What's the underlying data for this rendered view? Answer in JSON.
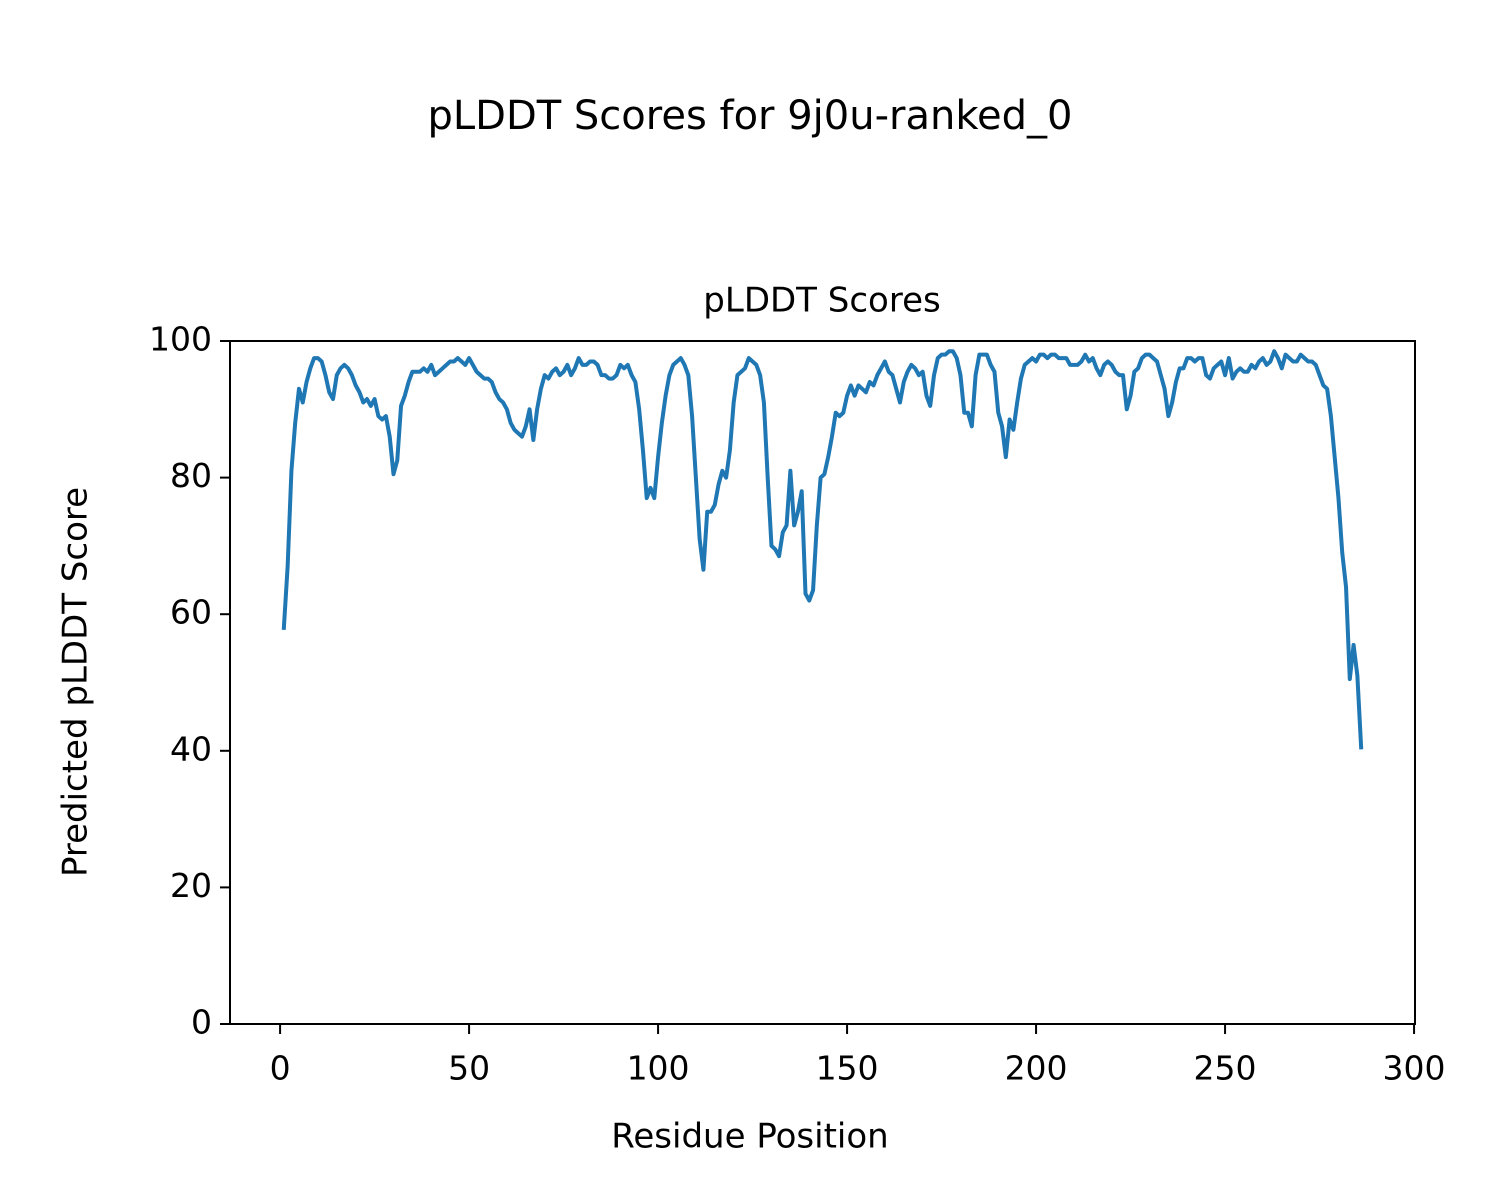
{
  "chart_data": {
    "type": "line",
    "title": "pLDDT Scores for 9j0u-ranked_0",
    "subtitle": "pLDDT Scores",
    "x_label": "Residue Position",
    "y_label": "Predicted pLDDT Score",
    "color": "#1f77b4",
    "xlim": [
      -13.25,
      300.25
    ],
    "ylim": [
      0,
      100
    ],
    "xticks": [
      0,
      50,
      100,
      150,
      200,
      250,
      300
    ],
    "yticks": [
      0,
      20,
      40,
      60,
      80,
      100
    ],
    "grid": false,
    "x": [
      1,
      2,
      3,
      4,
      5,
      6,
      7,
      8,
      9,
      10,
      11,
      12,
      13,
      14,
      15,
      16,
      17,
      18,
      19,
      20,
      21,
      22,
      23,
      24,
      25,
      26,
      27,
      28,
      29,
      30,
      31,
      32,
      33,
      34,
      35,
      36,
      37,
      38,
      39,
      40,
      41,
      42,
      43,
      44,
      45,
      46,
      47,
      48,
      49,
      50,
      51,
      52,
      53,
      54,
      55,
      56,
      57,
      58,
      59,
      60,
      61,
      62,
      63,
      64,
      65,
      66,
      67,
      68,
      69,
      70,
      71,
      72,
      73,
      74,
      75,
      76,
      77,
      78,
      79,
      80,
      81,
      82,
      83,
      84,
      85,
      86,
      87,
      88,
      89,
      90,
      91,
      92,
      93,
      94,
      95,
      96,
      97,
      98,
      99,
      100,
      101,
      102,
      103,
      104,
      105,
      106,
      107,
      108,
      109,
      110,
      111,
      112,
      113,
      114,
      115,
      116,
      117,
      118,
      119,
      120,
      121,
      122,
      123,
      124,
      125,
      126,
      127,
      128,
      129,
      130,
      131,
      132,
      133,
      134,
      135,
      136,
      137,
      138,
      139,
      140,
      141,
      142,
      143,
      144,
      145,
      146,
      147,
      148,
      149,
      150,
      151,
      152,
      153,
      154,
      155,
      156,
      157,
      158,
      159,
      160,
      161,
      162,
      163,
      164,
      165,
      166,
      167,
      168,
      169,
      170,
      171,
      172,
      173,
      174,
      175,
      176,
      177,
      178,
      179,
      180,
      181,
      182,
      183,
      184,
      185,
      186,
      187,
      188,
      189,
      190,
      191,
      192,
      193,
      194,
      195,
      196,
      197,
      198,
      199,
      200,
      201,
      202,
      203,
      204,
      205,
      206,
      207,
      208,
      209,
      210,
      211,
      212,
      213,
      214,
      215,
      216,
      217,
      218,
      219,
      220,
      221,
      222,
      223,
      224,
      225,
      226,
      227,
      228,
      229,
      230,
      231,
      232,
      233,
      234,
      235,
      236,
      237,
      238,
      239,
      240,
      241,
      242,
      243,
      244,
      245,
      246,
      247,
      248,
      249,
      250,
      251,
      252,
      253,
      254,
      255,
      256,
      257,
      258,
      259,
      260,
      261,
      262,
      263,
      264,
      265,
      266,
      267,
      268,
      269,
      270,
      271,
      272,
      273,
      274,
      275,
      276,
      277,
      278,
      279,
      280,
      281,
      282,
      283,
      284,
      285,
      286
    ],
    "values": [
      58,
      67,
      81,
      88,
      93,
      91,
      94,
      96,
      97.5,
      97.5,
      97,
      95,
      92.5,
      91.5,
      95,
      96,
      96.5,
      96,
      95,
      93.5,
      92.5,
      91,
      91.5,
      90.5,
      91.5,
      89,
      88.5,
      89,
      86,
      80.5,
      82.5,
      90.5,
      92,
      94,
      95.5,
      95.5,
      95.5,
      96,
      95.5,
      96.5,
      95,
      95.5,
      96,
      96.5,
      97,
      97,
      97.5,
      97,
      96.5,
      97.5,
      96.5,
      95.5,
      95,
      94.5,
      94.5,
      94,
      92.5,
      91.5,
      91,
      90,
      88,
      87,
      86.5,
      86,
      87.5,
      90,
      85.5,
      90,
      93,
      95,
      94.5,
      95.5,
      96,
      95,
      95.5,
      96.5,
      95,
      96,
      97.5,
      96.5,
      96.5,
      97,
      97,
      96.5,
      95,
      95,
      94.5,
      94.5,
      95,
      96.5,
      96,
      96.5,
      95,
      94,
      90,
      84,
      77,
      78.5,
      77,
      83,
      88,
      92,
      95,
      96.5,
      97,
      97.5,
      96.5,
      95,
      89,
      80,
      71,
      66.5,
      75,
      75,
      76,
      79,
      81,
      80,
      84,
      91,
      95,
      95.5,
      96,
      97.5,
      97,
      96.5,
      95,
      91,
      80,
      70,
      69.5,
      68.5,
      72,
      73,
      81,
      73,
      75,
      78,
      63,
      62,
      63.5,
      73,
      80,
      80.5,
      83,
      86,
      89.5,
      89,
      89.5,
      92,
      93.5,
      92,
      93.5,
      93,
      92.5,
      94,
      93.5,
      95,
      96,
      97,
      95.5,
      95,
      93,
      91,
      94,
      95.5,
      96.5,
      96,
      95,
      95.5,
      92,
      90.5,
      95,
      97.5,
      98,
      98,
      98.5,
      98.5,
      97.5,
      95,
      89.5,
      89.5,
      87.5,
      95,
      98,
      98,
      98,
      96.5,
      95.5,
      89.5,
      87.5,
      83,
      88.5,
      87,
      91,
      94.5,
      96.5,
      97,
      97.5,
      97,
      98,
      98,
      97.5,
      98,
      98,
      97.5,
      97.5,
      97.5,
      96.5,
      96.5,
      96.5,
      97,
      98,
      97,
      97.5,
      96,
      95,
      96.5,
      97,
      96.5,
      95.5,
      95,
      95,
      90,
      92,
      95.5,
      96,
      97.5,
      98,
      98,
      97.5,
      97,
      95,
      93,
      89,
      91,
      94,
      96,
      96,
      97.5,
      97.5,
      97,
      97.5,
      97.5,
      95,
      94.5,
      96,
      96.5,
      97,
      95,
      97.5,
      94.5,
      95.5,
      96,
      95.5,
      95.5,
      96.5,
      96,
      97,
      97.5,
      96.5,
      97,
      98.5,
      97.5,
      96,
      98,
      97.5,
      97,
      97,
      98,
      97.5,
      97,
      97,
      96.5,
      95,
      93.5,
      93,
      89,
      83,
      77,
      69,
      64,
      50.5,
      55.5,
      51,
      40.5
    ]
  }
}
